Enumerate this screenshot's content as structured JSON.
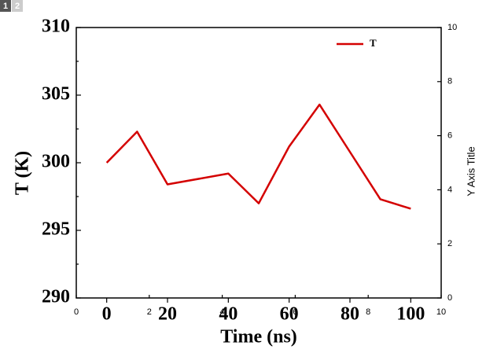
{
  "tabs": [
    "1",
    "2"
  ],
  "chart_data": {
    "type": "line",
    "x_label": "Time (ns)",
    "y_label": "T (K)",
    "y2_label": "Y Axis Title",
    "x": [
      0,
      10,
      20,
      40,
      50,
      60,
      70,
      80,
      90,
      100
    ],
    "series": [
      {
        "name": "T",
        "color": "#d40000",
        "values": [
          300.0,
          302.3,
          298.4,
          299.2,
          297.0,
          301.2,
          304.3,
          300.8,
          297.3,
          296.6
        ]
      }
    ],
    "xlim": [
      -10,
      110
    ],
    "xticks": [
      0,
      20,
      40,
      60,
      80,
      100
    ],
    "ylim": [
      290,
      310
    ],
    "yticks": [
      290,
      295,
      300,
      305,
      310
    ],
    "x2lim": [
      0,
      10
    ],
    "x2ticks": [
      0,
      2,
      4,
      6,
      8,
      10
    ],
    "y2lim": [
      0,
      10
    ],
    "y2ticks": [
      0,
      2,
      4,
      6,
      8,
      10
    ],
    "legend": "top-right"
  }
}
